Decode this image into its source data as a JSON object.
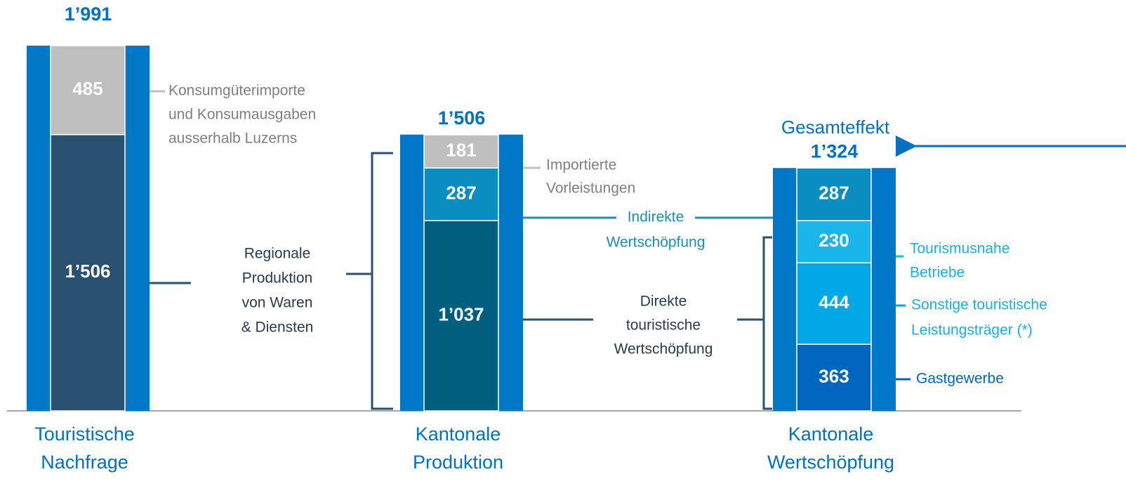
{
  "chart_data": {
    "type": "stacked_bar",
    "frame_color": "#0078c8",
    "stacks": [
      {
        "category": [
          "Touristische",
          "Nachfrage"
        ],
        "total": 1991,
        "total_label": "1’991",
        "segments": [
          {
            "value": 1506,
            "value_label": "1’506",
            "color": "#2b5171"
          },
          {
            "value": 485,
            "value_label": "485",
            "color": "#bfbfbf"
          }
        ]
      },
      {
        "category": [
          "Kantonale",
          "Produktion"
        ],
        "total": 1506,
        "total_label": "1’506",
        "segments": [
          {
            "value": 1037,
            "value_label": "1’037",
            "color": "#005f7f"
          },
          {
            "value": 287,
            "value_label": "287",
            "color": "#0a8ec2"
          },
          {
            "value": 181,
            "value_label": "181",
            "color": "#bfbfbf"
          }
        ]
      },
      {
        "category": [
          "Kantonale",
          "Wertschöpfung"
        ],
        "total": 1324,
        "total_label": "1’324",
        "segments": [
          {
            "value": 363,
            "value_label": "363",
            "color": "#0066c0"
          },
          {
            "value": 444,
            "value_label": "444",
            "color": "#00a8e8"
          },
          {
            "value": 230,
            "value_label": "230",
            "color": "#19b5eb"
          },
          {
            "value": 287,
            "value_label": "287",
            "color": "#0a8ec2"
          }
        ]
      }
    ],
    "annotations": [
      {
        "lines": [
          "Konsumgüterimporte",
          "und Konsumausgaben",
          "ausserhalb Luzerns"
        ],
        "color": "#7f7f7f"
      },
      {
        "lines": [
          "Regionale",
          "Produktion",
          "von Waren",
          "& Diensten"
        ],
        "color": "#2b3a4a"
      },
      {
        "lines": [
          "Importierte",
          "Vorleistungen"
        ],
        "color": "#7f7f7f"
      },
      {
        "lines": [
          "Indirekte",
          "Wertschöpfung"
        ],
        "color": "#1a8fb8"
      },
      {
        "lines": [
          "Direkte",
          "touristische",
          "Wertschöpfung"
        ],
        "color": "#2b3a4a"
      },
      {
        "lines": [
          "Tourismusnahe",
          "Betriebe"
        ],
        "color": "#19b0e6"
      },
      {
        "lines": [
          "Sonstige touristische",
          "Leistungsträger (*)"
        ],
        "color": "#19b0e6"
      },
      {
        "lines": [
          "Gastgewerbe"
        ],
        "color": "#0066c0"
      },
      {
        "lines": [
          "Gesamteffekt"
        ],
        "color": "#0070c0"
      }
    ]
  }
}
